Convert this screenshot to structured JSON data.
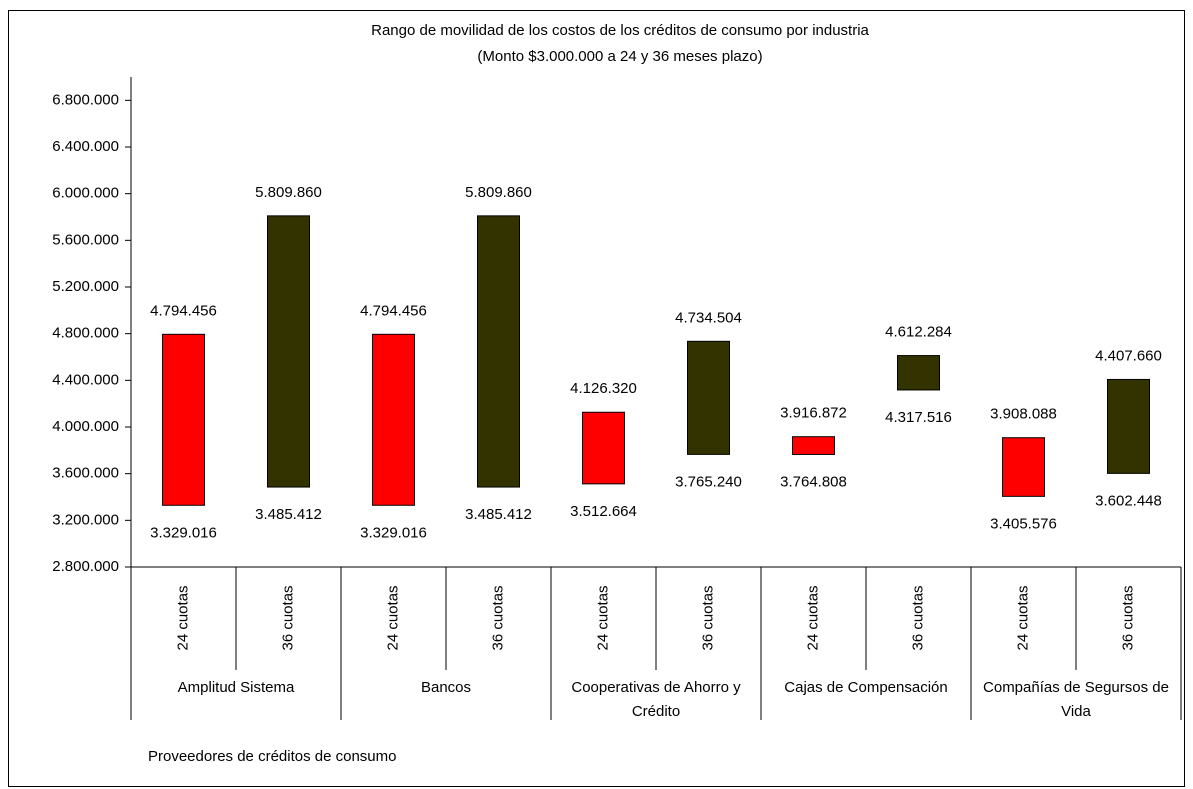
{
  "chart_data": {
    "type": "range_bar",
    "title": "Rango de movilidad de los costos de los créditos de consumo por industria",
    "subtitle": "(Monto $3.000.000 a 24 y 36 meses plazo)",
    "x_label": "Proveedores de créditos de consumo",
    "groups": [
      "Amplitud Sistema",
      "Bancos",
      "Cooperativas de Ahorro y Crédito",
      "Cajas de Compensación",
      "Compañías de Segursos de Vida"
    ],
    "categories": [
      "24 cuotas",
      "36 cuotas",
      "24 cuotas",
      "36 cuotas",
      "24 cuotas",
      "36 cuotas",
      "24 cuotas",
      "36 cuotas",
      "24 cuotas",
      "36 cuotas"
    ],
    "colors": [
      "#ff0000",
      "#333300",
      "#ff0000",
      "#333300",
      "#ff0000",
      "#333300",
      "#ff0000",
      "#333300",
      "#ff0000",
      "#333300"
    ],
    "low": {
      "values": [
        3329016,
        3485412,
        3329016,
        3485412,
        3512664,
        3765240,
        3764808,
        4317516,
        3405576,
        3602448
      ],
      "value_labels": [
        "3.329.016",
        "3.485.412",
        "3.329.016",
        "3.485.412",
        "3.512.664",
        "3.765.240",
        "3.764.808",
        "4.317.516",
        "3.405.576",
        "3.602.448"
      ]
    },
    "high": {
      "values": [
        4794456,
        5809860,
        4794456,
        5809860,
        4126320,
        4734504,
        3916872,
        4612284,
        3908088,
        4407660
      ],
      "value_labels": [
        "4.794.456",
        "5.809.860",
        "4.794.456",
        "5.809.860",
        "4.126.320",
        "4.734.504",
        "3.916.872",
        "4.612.284",
        "3.908.088",
        "4.407.660"
      ]
    },
    "ylim": [
      2800000,
      7000000
    ],
    "yticks": [
      {
        "value": 2800000,
        "label": "2.800.000"
      },
      {
        "value": 3200000,
        "label": "3.200.000"
      },
      {
        "value": 3600000,
        "label": "3.600.000"
      },
      {
        "value": 4000000,
        "label": "4.000.000"
      },
      {
        "value": 4400000,
        "label": "4.400.000"
      },
      {
        "value": 4800000,
        "label": "4.800.000"
      },
      {
        "value": 5200000,
        "label": "5.200.000"
      },
      {
        "value": 5600000,
        "label": "5.600.000"
      },
      {
        "value": 6000000,
        "label": "6.000.000"
      },
      {
        "value": 6400000,
        "label": "6.400.000"
      },
      {
        "value": 6800000,
        "label": "6.800.000"
      }
    ],
    "grid": false
  }
}
